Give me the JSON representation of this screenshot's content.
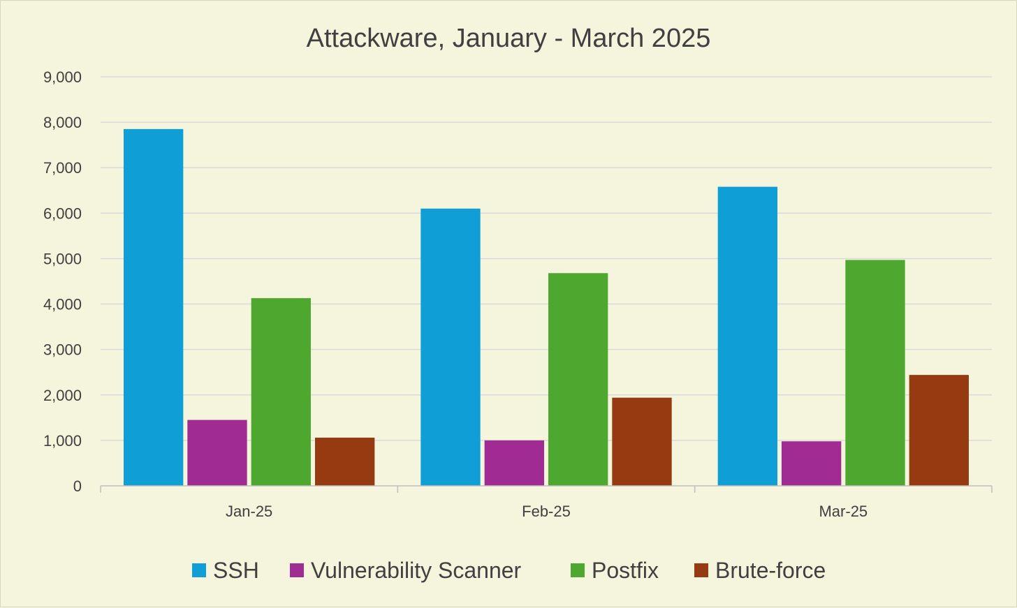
{
  "chart_data": {
    "type": "bar",
    "title": "Attackware, January - March 2025",
    "categories": [
      "Jan-25",
      "Feb-25",
      "Mar-25"
    ],
    "series": [
      {
        "name": "SSH",
        "color": "#0f9ed5",
        "values": [
          7850,
          6100,
          6580
        ]
      },
      {
        "name": "Vulnerability Scanner",
        "color": "#a02b93",
        "values": [
          1450,
          1000,
          980
        ]
      },
      {
        "name": "Postfix",
        "color": "#4ea72e",
        "values": [
          4130,
          4680,
          4970
        ]
      },
      {
        "name": "Brute-force",
        "color": "#953a11",
        "values": [
          1060,
          1940,
          2440
        ]
      }
    ],
    "ylim": [
      0,
      9000
    ],
    "yticks": [
      "0",
      "1,000",
      "2,000",
      "3,000",
      "4,000",
      "5,000",
      "6,000",
      "7,000",
      "8,000",
      "9,000"
    ],
    "grid": true,
    "legend_position": "bottom",
    "xlabel": "",
    "ylabel": ""
  }
}
